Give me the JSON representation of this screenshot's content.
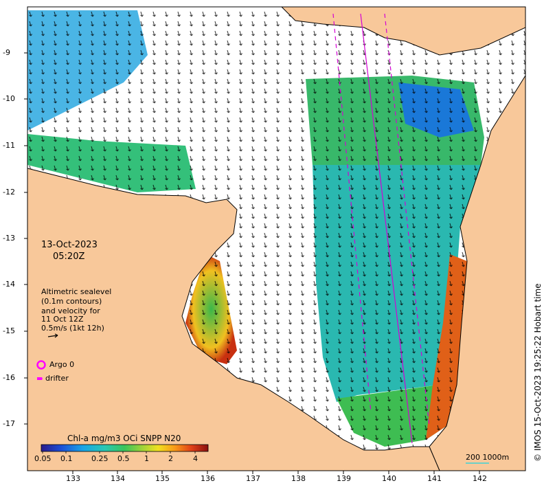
{
  "date_label": "13-Oct-2023",
  "time_label": "05:20Z",
  "velocity_legend": {
    "line1": "Altimetric sealevel",
    "line2": "(0.1m contours)",
    "line3": "and velocity for",
    "line4": "11 Oct 12Z",
    "line5": "0.5m/s (1kt 12h)"
  },
  "argo_label": "Argo 0",
  "drifter_label": "drifter",
  "colorbar": {
    "title": "Chl-a mg/m3 OCi SNPP N20",
    "ticks": [
      "0.05",
      "0.1",
      "0.25",
      "0.5",
      "1",
      "2",
      "4"
    ]
  },
  "scale_label": "200  1000m",
  "credit": "© IMOS 15-Oct-2023 19:25:22 Hobart time",
  "axes": {
    "lon_ticks": [
      "133",
      "134",
      "135",
      "136",
      "137",
      "138",
      "139",
      "140",
      "141",
      "142"
    ],
    "lat_ticks": [
      "-9",
      "-10",
      "-11",
      "-12",
      "-13",
      "-14",
      "-15",
      "-16",
      "-17"
    ]
  },
  "colors": {
    "land": "#f8c89a",
    "ocean_blank": "#ffffff",
    "argo": "#ff00ff",
    "track": "#d400d4",
    "scale_bar": "#6cd0c8"
  }
}
